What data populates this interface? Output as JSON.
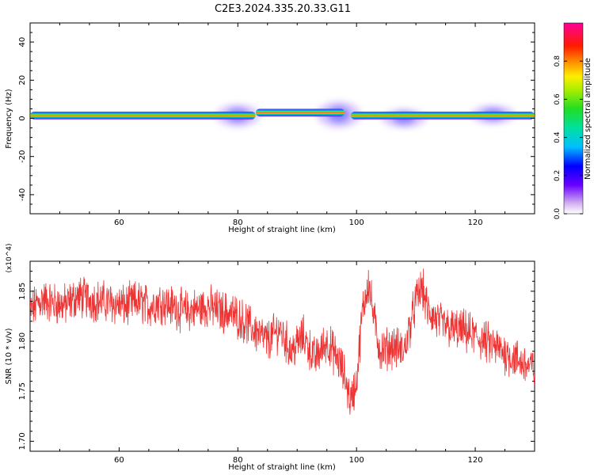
{
  "title": "C2E3.2024.335.20.33.G11",
  "chart_data": [
    {
      "type": "heatmap",
      "xlabel": "Height of straight line (km)",
      "ylabel": "Frequency (Hz)",
      "xlim": [
        45,
        130
      ],
      "ylim": [
        -50,
        50
      ],
      "xticks": [
        60,
        80,
        100,
        120
      ],
      "yticks": [
        -40,
        -20,
        0,
        20,
        40
      ],
      "colorbar": {
        "label": "Normalized spectral amplitude",
        "range": [
          0,
          1
        ],
        "ticks": [
          "0.0",
          "0.2",
          "0.4",
          "0.6",
          "0.8"
        ]
      },
      "band": {
        "center_freq_hz": 2,
        "segments": [
          {
            "x_start": 45,
            "x_end": 83,
            "center_hz": 1.5,
            "half_width_hz": 2
          },
          {
            "x_start": 83,
            "x_end": 98,
            "center_hz": 3,
            "half_width_hz": 2
          },
          {
            "x_start": 99,
            "x_end": 130,
            "center_hz": 1.5,
            "half_width_hz": 2
          }
        ],
        "spread_blobs": [
          {
            "x": 80,
            "center_hz": 1.5,
            "spread_hz": 6
          },
          {
            "x": 97,
            "center_hz": 2,
            "spread_hz": 7
          },
          {
            "x": 108,
            "center_hz": 0,
            "spread_hz": 5
          },
          {
            "x": 123,
            "center_hz": 2,
            "spread_hz": 5
          }
        ]
      }
    },
    {
      "type": "line",
      "xlabel": "Height of straight line (km)",
      "ylabel": "SNR (10 * v/v)",
      "y_multiplier": "(x10^4)",
      "xlim": [
        45,
        130
      ],
      "ylim": [
        1.69,
        1.88
      ],
      "xticks": [
        60,
        80,
        100,
        120
      ],
      "yticks": [
        1.7,
        1.75,
        1.8,
        1.85
      ],
      "color": "#ee3333",
      "series": [
        {
          "x": [
            45,
            47,
            49,
            51,
            53,
            55,
            57,
            59,
            61,
            63,
            65,
            67,
            69,
            71,
            73,
            75,
            77,
            79,
            81,
            83,
            85,
            87,
            89,
            91,
            93,
            95,
            97,
            98,
            99,
            100,
            101,
            102,
            103,
            104,
            106,
            108,
            110,
            111,
            112,
            114,
            116,
            118,
            120,
            122,
            124,
            126,
            128,
            130
          ],
          "values": [
            1.83,
            1.842,
            1.838,
            1.836,
            1.845,
            1.842,
            1.84,
            1.838,
            1.835,
            1.84,
            1.835,
            1.84,
            1.835,
            1.83,
            1.832,
            1.835,
            1.83,
            1.828,
            1.82,
            1.81,
            1.8,
            1.812,
            1.79,
            1.805,
            1.782,
            1.8,
            1.78,
            1.765,
            1.74,
            1.76,
            1.83,
            1.86,
            1.82,
            1.79,
            1.795,
            1.79,
            1.84,
            1.855,
            1.83,
            1.818,
            1.812,
            1.81,
            1.805,
            1.798,
            1.792,
            1.785,
            1.778,
            1.772
          ]
        }
      ]
    }
  ]
}
